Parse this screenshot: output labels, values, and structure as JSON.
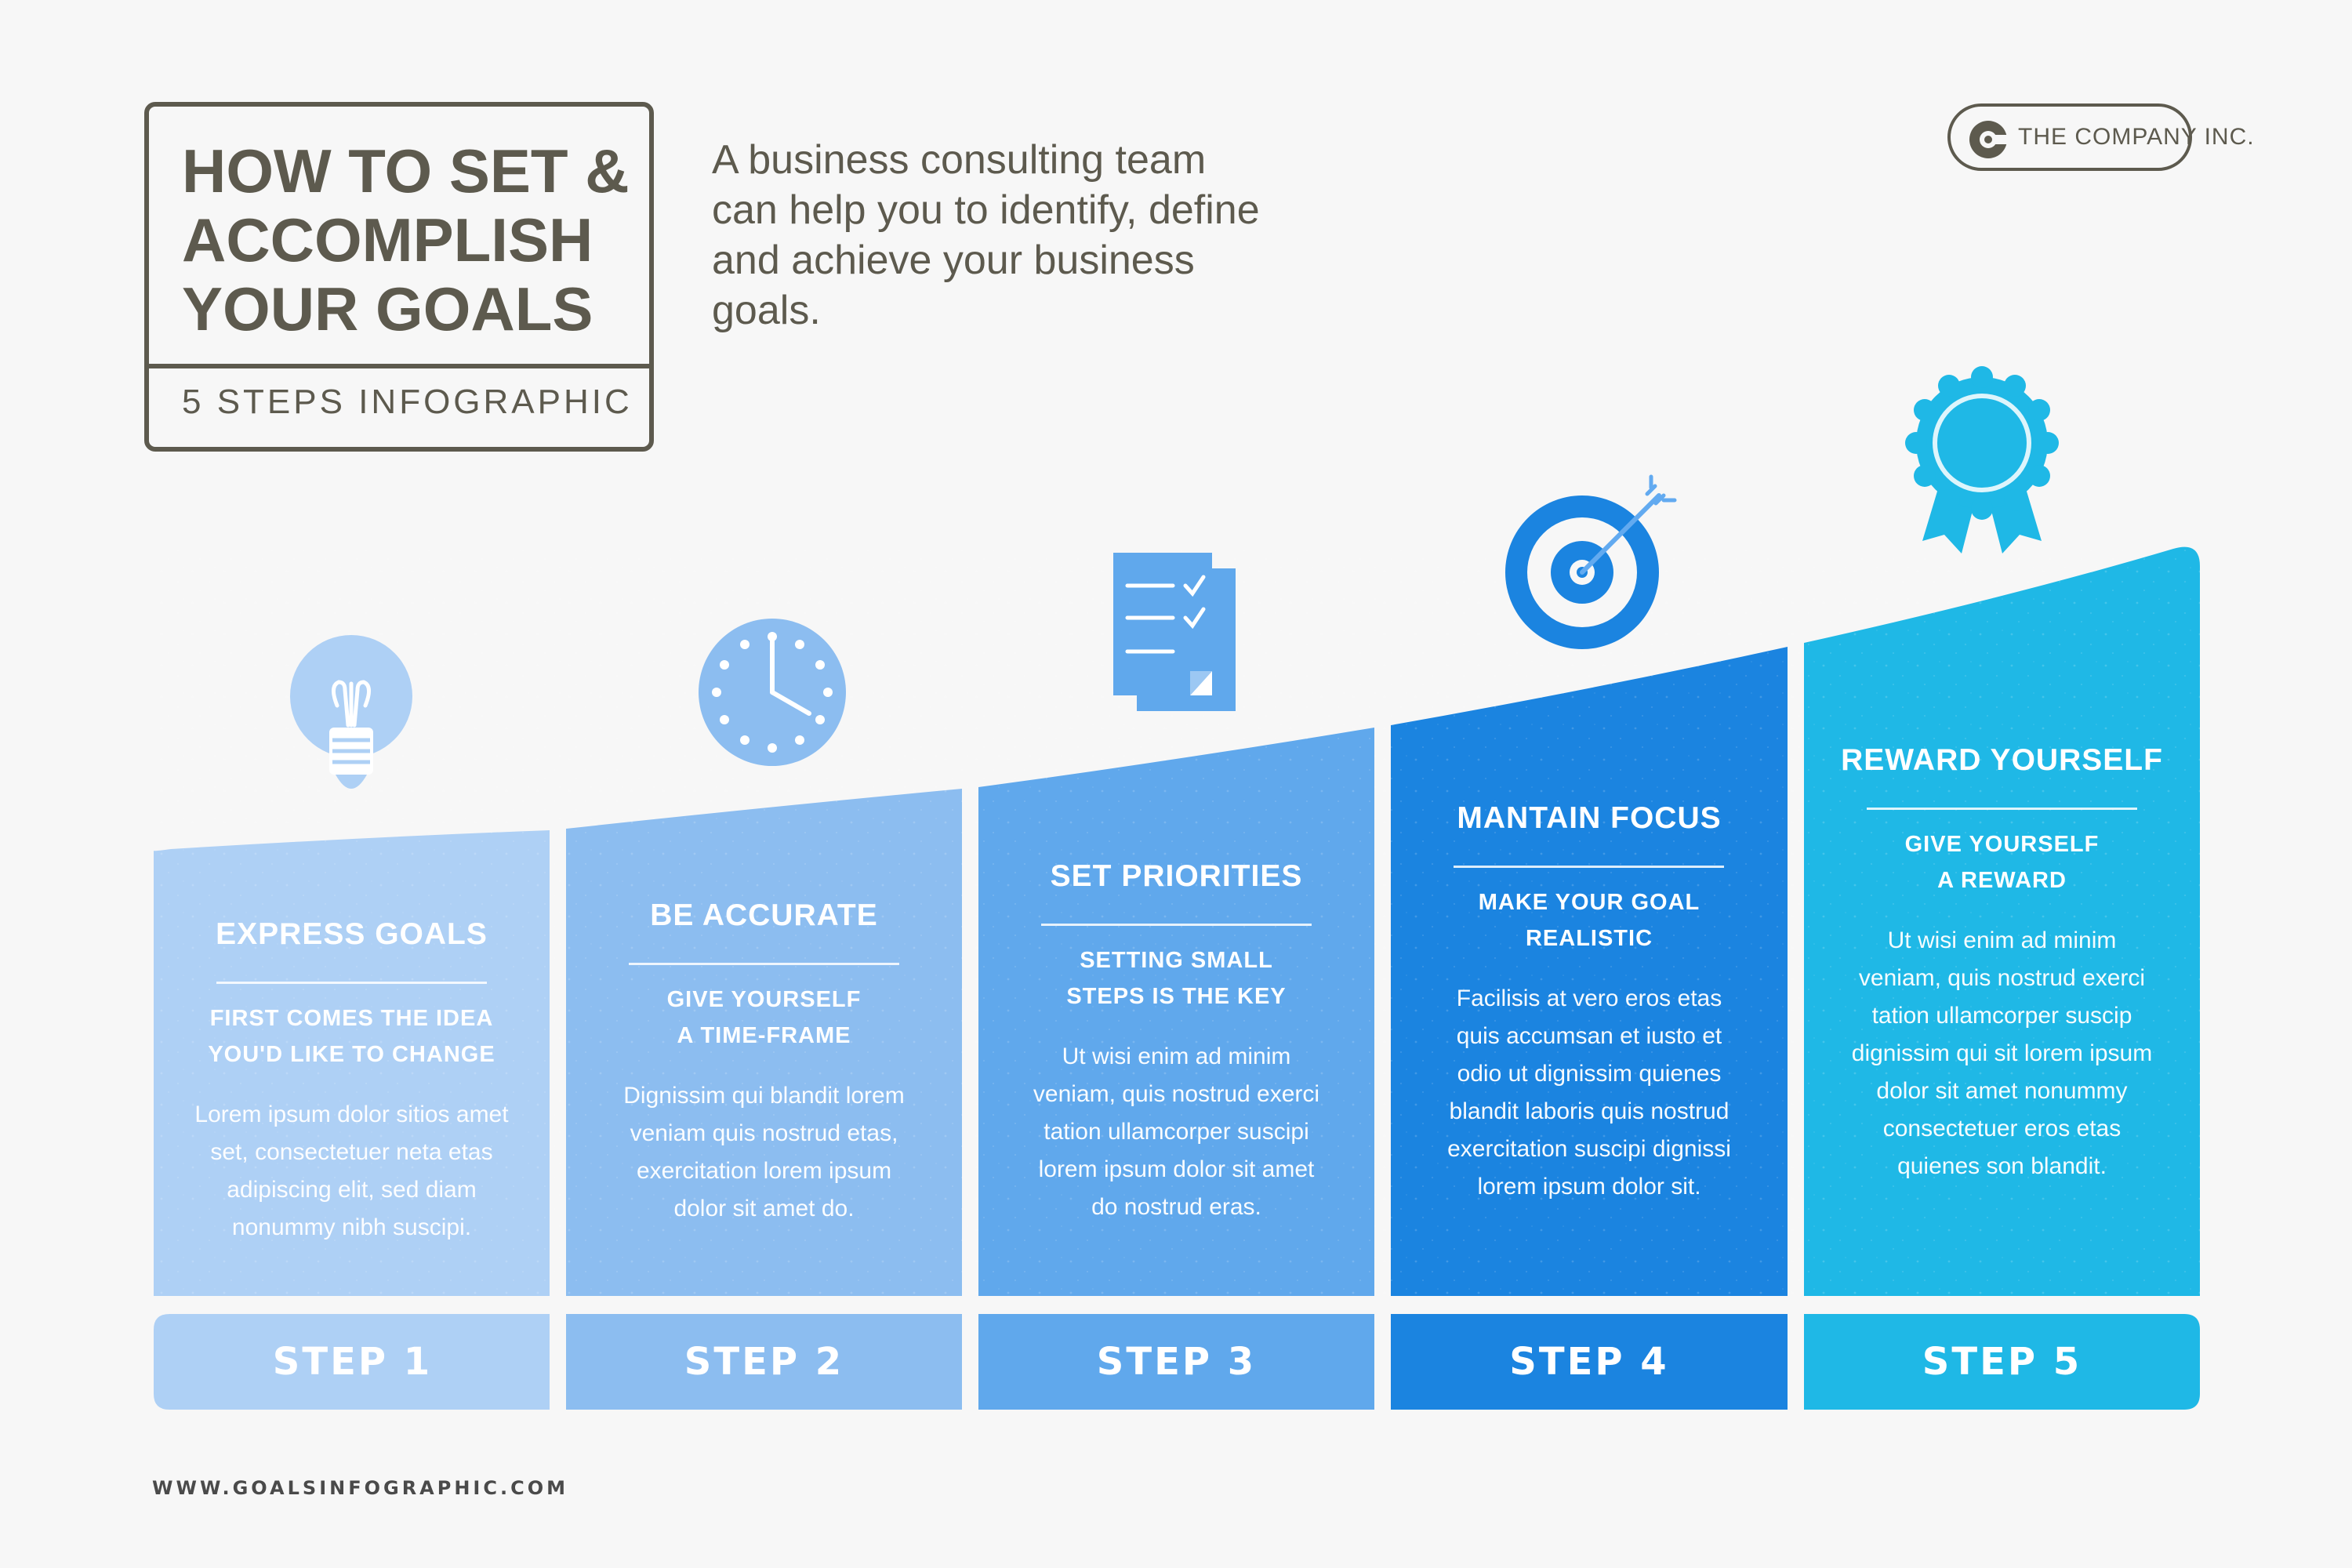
{
  "header": {
    "title": "HOW TO SET &\nACCOMPLISH\nYOUR GOALS",
    "subtitle": "5 STEPS INFOGRAPHIC",
    "intro": "A business consulting team can help you to identify, define and achieve your business goals."
  },
  "company": {
    "name": "THE COMPANY INC.",
    "logo_icon": "c-logo-icon"
  },
  "colors": {
    "step1": "#aed0f5",
    "step2": "#8cbdf0",
    "step3": "#60a8ec",
    "step4": "#1b84e0",
    "step5": "#1fb8e6",
    "text_dark": "#5d5a4e"
  },
  "steps": [
    {
      "heading": "EXPRESS GOALS",
      "subheading": "FIRST COMES THE IDEA\nYOU'D LIKE TO CHANGE",
      "body": "Lorem ipsum dolor sitios amet\nset, consectetuer neta etas\nadipiscing elit, sed diam\nnonummy nibh suscipi.",
      "label": "STEP 1",
      "icon": "lightbulb-icon"
    },
    {
      "heading": "BE ACCURATE",
      "subheading": "GIVE YOURSELF\nA TIME-FRAME",
      "body": "Dignissim qui blandit lorem\nveniam quis nostrud etas,\nexercitation lorem ipsum\ndolor sit amet do.",
      "label": "STEP 2",
      "icon": "clock-icon"
    },
    {
      "heading": "SET PRIORITIES",
      "subheading": "SETTING SMALL\nSTEPS IS THE KEY",
      "body": "Ut wisi enim ad minim\nveniam, quis nostrud exerci\ntation ullamcorper suscipi\nlorem ipsum dolor sit amet\ndo nostrud eras.",
      "label": "STEP 3",
      "icon": "checklist-icon"
    },
    {
      "heading": "MANTAIN FOCUS",
      "subheading": "MAKE YOUR GOAL\nREALISTIC",
      "body": "Facilisis at vero eros etas\nquis accumsan et iusto et\nodio ut dignissim quienes\nblandit laboris quis nostrud\nexercitation suscipi dignissi\nlorem ipsum dolor sit.",
      "label": "STEP 4",
      "icon": "target-icon"
    },
    {
      "heading": "REWARD YOURSELF",
      "subheading": "GIVE YOURSELF\nA REWARD",
      "body": "Ut wisi enim ad minim\nveniam, quis nostrud exerci\ntation ullamcorper suscip\ndignissim qui sit lorem ipsum\ndolor sit amet nonummy\nconsectetuer eros etas\nquienes son blandit.",
      "label": "STEP 5",
      "icon": "award-ribbon-icon"
    }
  ],
  "footer": {
    "website": "WWW.GOALSINFOGRAPHIC.COM"
  }
}
